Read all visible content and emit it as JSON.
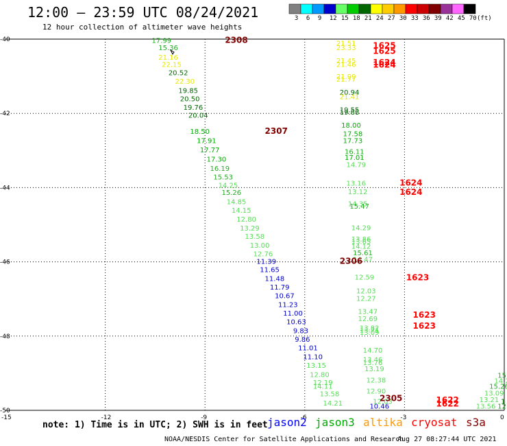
{
  "title": "12:00 — 23:59 UTC 08/24/2021",
  "subtitle": "12 hour collection of altimeter wave heights",
  "note": "note: 1) Time is in UTC; 2) SWH is in feet",
  "footer_left": "NOAA/NESDIS Center for Satellite Applications and Research",
  "footer_right": "Aug 27 08:27:44 UTC 2021",
  "colorbar": {
    "unit": "(ft)",
    "labels": [
      "3",
      "6",
      "9",
      "12",
      "15",
      "18",
      "21",
      "24",
      "27",
      "30",
      "33",
      "36",
      "39",
      "42",
      "45",
      "70"
    ],
    "colors": [
      "#808080",
      "#00ffff",
      "#0099ff",
      "#0000cc",
      "#66ff66",
      "#00cc00",
      "#006600",
      "#ffff00",
      "#ffcc00",
      "#ff9900",
      "#ff0000",
      "#cc0000",
      "#800000",
      "#993399",
      "#ff66ff",
      "#000000"
    ]
  },
  "satellites": [
    {
      "name": "jason2",
      "color": "#0000ff"
    },
    {
      "name": "jason3",
      "color": "#00aa00"
    },
    {
      "name": "altika",
      "color": "#ff9900"
    },
    {
      "name": "cryosat",
      "color": "#ff0000"
    },
    {
      "name": "s3a",
      "color": "#800000"
    }
  ],
  "chart_data": {
    "type": "scatter",
    "xlim": [
      -15,
      0
    ],
    "ylim": [
      -50,
      -40
    ],
    "x_ticks": [
      "-15",
      "-12",
      "-9",
      "-6",
      "-3",
      "0"
    ],
    "y_ticks": [
      "-40",
      "-42",
      "-44",
      "-46",
      "-48",
      "-50"
    ],
    "grid": true,
    "track_labels": [
      {
        "text": "2308",
        "lon": -8.4,
        "lat": -40.1,
        "color": "#800000"
      },
      {
        "text": "2307",
        "lon": -7.2,
        "lat": -42.55,
        "color": "#800000"
      },
      {
        "text": "2306",
        "lon": -4.95,
        "lat": -46.05,
        "color": "#800000"
      },
      {
        "text": "2305",
        "lon": -3.75,
        "lat": -49.75,
        "color": "#800000"
      },
      {
        "text": "1625",
        "lon": -3.95,
        "lat": -40.25,
        "color": "#ff0000"
      },
      {
        "text": "1625",
        "lon": -3.95,
        "lat": -40.4,
        "color": "#ff0000"
      },
      {
        "text": "1624",
        "lon": -3.95,
        "lat": -40.7,
        "color": "#ff0000"
      },
      {
        "text": "1624",
        "lon": -3.95,
        "lat": -40.77,
        "color": "#ff0000"
      },
      {
        "text": "1624",
        "lon": -3.15,
        "lat": -43.95,
        "color": "#ff0000"
      },
      {
        "text": "1624",
        "lon": -3.15,
        "lat": -44.2,
        "color": "#ff0000"
      },
      {
        "text": "1623",
        "lon": -2.95,
        "lat": -46.5,
        "color": "#ff0000"
      },
      {
        "text": "1623",
        "lon": -2.75,
        "lat": -47.5,
        "color": "#ff0000"
      },
      {
        "text": "1623",
        "lon": -2.75,
        "lat": -47.8,
        "color": "#ff0000"
      },
      {
        "text": "1622",
        "lon": -2.05,
        "lat": -49.8,
        "color": "#ff0000"
      },
      {
        "text": "1622",
        "lon": -2.05,
        "lat": -49.9,
        "color": "#ff0000"
      }
    ],
    "points": [
      {
        "v": "17.99",
        "lon": -10.6,
        "lat": -40.1,
        "color": "#22aa22"
      },
      {
        "v": "15.36",
        "lon": -10.4,
        "lat": -40.3,
        "color": "#22aa22"
      },
      {
        "v": "21.16",
        "lon": -10.4,
        "lat": -40.55,
        "color": "#e8e800"
      },
      {
        "v": "22.15",
        "lon": -10.3,
        "lat": -40.75,
        "color": "#e8e800"
      },
      {
        "v": "20.52",
        "lon": -10.1,
        "lat": -40.97,
        "color": "#006600"
      },
      {
        "v": "22.30",
        "lon": -9.9,
        "lat": -41.2,
        "color": "#e8e800"
      },
      {
        "v": "19.85",
        "lon": -9.8,
        "lat": -41.45,
        "color": "#006600"
      },
      {
        "v": "20.50",
        "lon": -9.75,
        "lat": -41.67,
        "color": "#006600"
      },
      {
        "v": "19.76",
        "lon": -9.65,
        "lat": -41.9,
        "color": "#006600"
      },
      {
        "v": "20.04",
        "lon": -9.5,
        "lat": -42.12,
        "color": "#006600"
      },
      {
        "v": "18.50",
        "lon": -9.45,
        "lat": -42.55,
        "color": "#00aa00"
      },
      {
        "v": "17.91",
        "lon": -9.25,
        "lat": -42.8,
        "color": "#00aa00"
      },
      {
        "v": "17.77",
        "lon": -9.15,
        "lat": -43.05,
        "color": "#00aa00"
      },
      {
        "v": "17.30",
        "lon": -8.95,
        "lat": -43.3,
        "color": "#00aa00"
      },
      {
        "v": "16.19",
        "lon": -8.85,
        "lat": -43.55,
        "color": "#22aa22"
      },
      {
        "v": "15.53",
        "lon": -8.75,
        "lat": -43.78,
        "color": "#22aa22"
      },
      {
        "v": "14.25",
        "lon": -8.6,
        "lat": -44.0,
        "color": "#55dd55"
      },
      {
        "v": "15.26",
        "lon": -8.5,
        "lat": -44.2,
        "color": "#22aa22"
      },
      {
        "v": "14.85",
        "lon": -8.35,
        "lat": -44.45,
        "color": "#55dd55"
      },
      {
        "v": "14.15",
        "lon": -8.2,
        "lat": -44.68,
        "color": "#55dd55"
      },
      {
        "v": "12.80",
        "lon": -8.05,
        "lat": -44.92,
        "color": "#55dd55"
      },
      {
        "v": "13.29",
        "lon": -7.95,
        "lat": -45.16,
        "color": "#55dd55"
      },
      {
        "v": "13.58",
        "lon": -7.8,
        "lat": -45.38,
        "color": "#55dd55"
      },
      {
        "v": "13.00",
        "lon": -7.65,
        "lat": -45.62,
        "color": "#55dd55"
      },
      {
        "v": "12.76",
        "lon": -7.55,
        "lat": -45.85,
        "color": "#55dd55"
      },
      {
        "v": "11.39",
        "lon": -7.45,
        "lat": -46.05,
        "color": "#0000cc"
      },
      {
        "v": "11.65",
        "lon": -7.35,
        "lat": -46.28,
        "color": "#0000cc"
      },
      {
        "v": "11.48",
        "lon": -7.2,
        "lat": -46.52,
        "color": "#0000cc"
      },
      {
        "v": "11.79",
        "lon": -7.05,
        "lat": -46.75,
        "color": "#0000cc"
      },
      {
        "v": "10.67",
        "lon": -6.9,
        "lat": -46.98,
        "color": "#0000cc"
      },
      {
        "v": "11.23",
        "lon": -6.8,
        "lat": -47.22,
        "color": "#0000cc"
      },
      {
        "v": "11.00",
        "lon": -6.65,
        "lat": -47.45,
        "color": "#0000cc"
      },
      {
        "v": "10.63",
        "lon": -6.55,
        "lat": -47.68,
        "color": "#0000cc"
      },
      {
        "v": "9.83",
        "lon": -6.35,
        "lat": -47.92,
        "color": "#0000cc"
      },
      {
        "v": "9.86",
        "lon": -6.3,
        "lat": -48.15,
        "color": "#0000cc"
      },
      {
        "v": "11.01",
        "lon": -6.2,
        "lat": -48.38,
        "color": "#0000cc"
      },
      {
        "v": "11.10",
        "lon": -6.05,
        "lat": -48.62,
        "color": "#0000cc"
      },
      {
        "v": "13.15",
        "lon": -5.95,
        "lat": -48.85,
        "color": "#55dd55"
      },
      {
        "v": "12.80",
        "lon": -5.85,
        "lat": -49.1,
        "color": "#55dd55"
      },
      {
        "v": "12.19",
        "lon": -5.75,
        "lat": -49.32,
        "color": "#55dd55"
      },
      {
        "v": "14.11",
        "lon": -5.75,
        "lat": -49.42,
        "color": "#55dd55"
      },
      {
        "v": "13.58",
        "lon": -5.55,
        "lat": -49.62,
        "color": "#55dd55"
      },
      {
        "v": "14.21",
        "lon": -5.45,
        "lat": -49.87,
        "color": "#55dd55"
      },
      {
        "v": "21.51",
        "lon": -5.05,
        "lat": -40.18,
        "color": "#e8e800"
      },
      {
        "v": "23.33",
        "lon": -5.05,
        "lat": -40.3,
        "color": "#e8e800"
      },
      {
        "v": "21.45",
        "lon": -5.05,
        "lat": -40.65,
        "color": "#e8e800"
      },
      {
        "v": "21.46",
        "lon": -5.05,
        "lat": -40.75,
        "color": "#e8e800"
      },
      {
        "v": "21.99",
        "lon": -5.05,
        "lat": -41.07,
        "color": "#e8e800"
      },
      {
        "v": "21.77",
        "lon": -5.05,
        "lat": -41.15,
        "color": "#e8e800"
      },
      {
        "v": "20.94",
        "lon": -4.95,
        "lat": -41.5,
        "color": "#006600"
      },
      {
        "v": "21.41",
        "lon": -4.95,
        "lat": -41.62,
        "color": "#e8e800"
      },
      {
        "v": "19.55",
        "lon": -4.95,
        "lat": -41.97,
        "color": "#006600"
      },
      {
        "v": "19.88",
        "lon": -4.95,
        "lat": -42.03,
        "color": "#006600"
      },
      {
        "v": "18.00",
        "lon": -4.9,
        "lat": -42.38,
        "color": "#00aa00"
      },
      {
        "v": "17.58",
        "lon": -4.85,
        "lat": -42.62,
        "color": "#00aa00"
      },
      {
        "v": "17.73",
        "lon": -4.85,
        "lat": -42.8,
        "color": "#00aa00"
      },
      {
        "v": "16.11",
        "lon": -4.8,
        "lat": -43.1,
        "color": "#22aa22"
      },
      {
        "v": "17.01",
        "lon": -4.8,
        "lat": -43.25,
        "color": "#00aa00"
      },
      {
        "v": "14.79",
        "lon": -4.75,
        "lat": -43.45,
        "color": "#55dd55"
      },
      {
        "v": "13.16",
        "lon": -4.75,
        "lat": -43.95,
        "color": "#55dd55"
      },
      {
        "v": "13.12",
        "lon": -4.7,
        "lat": -44.18,
        "color": "#55dd55"
      },
      {
        "v": "14.35",
        "lon": -4.7,
        "lat": -44.5,
        "color": "#55dd55"
      },
      {
        "v": "15.47",
        "lon": -4.65,
        "lat": -44.57,
        "color": "#22aa22"
      },
      {
        "v": "14.29",
        "lon": -4.6,
        "lat": -45.15,
        "color": "#55dd55"
      },
      {
        "v": "13.86",
        "lon": -4.6,
        "lat": -45.45,
        "color": "#55dd55"
      },
      {
        "v": "13.65",
        "lon": -4.6,
        "lat": -45.52,
        "color": "#55dd55"
      },
      {
        "v": "14.12",
        "lon": -4.6,
        "lat": -45.65,
        "color": "#55dd55"
      },
      {
        "v": "15.61",
        "lon": -4.55,
        "lat": -45.82,
        "color": "#22aa22"
      },
      {
        "v": "14.47",
        "lon": -4.55,
        "lat": -46.0,
        "color": "#55dd55"
      },
      {
        "v": "12.59",
        "lon": -4.5,
        "lat": -46.48,
        "color": "#55dd55"
      },
      {
        "v": "12.03",
        "lon": -4.45,
        "lat": -46.85,
        "color": "#55dd55"
      },
      {
        "v": "12.27",
        "lon": -4.45,
        "lat": -47.05,
        "color": "#55dd55"
      },
      {
        "v": "13.47",
        "lon": -4.4,
        "lat": -47.4,
        "color": "#55dd55"
      },
      {
        "v": "12.69",
        "lon": -4.4,
        "lat": -47.6,
        "color": "#55dd55"
      },
      {
        "v": "13.82",
        "lon": -4.35,
        "lat": -47.85,
        "color": "#55dd55"
      },
      {
        "v": "13.71",
        "lon": -4.35,
        "lat": -47.9,
        "color": "#55dd55"
      },
      {
        "v": "13.09",
        "lon": -4.35,
        "lat": -47.97,
        "color": "#55dd55"
      },
      {
        "v": "14.70",
        "lon": -4.25,
        "lat": -48.45,
        "color": "#55dd55"
      },
      {
        "v": "13.46",
        "lon": -4.25,
        "lat": -48.7,
        "color": "#55dd55"
      },
      {
        "v": "13.76",
        "lon": -4.25,
        "lat": -48.78,
        "color": "#55dd55"
      },
      {
        "v": "13.19",
        "lon": -4.2,
        "lat": -48.95,
        "color": "#55dd55"
      },
      {
        "v": "12.38",
        "lon": -4.15,
        "lat": -49.25,
        "color": "#55dd55"
      },
      {
        "v": "12.90",
        "lon": -4.15,
        "lat": -49.55,
        "color": "#55dd55"
      },
      {
        "v": "12.03",
        "lon": -3.95,
        "lat": -49.82,
        "color": "#55dd55"
      },
      {
        "v": "10.46",
        "lon": -4.05,
        "lat": -49.95,
        "color": "#0000cc"
      },
      {
        "v": "13.56",
        "lon": -0.85,
        "lat": -49.95,
        "color": "#55dd55"
      },
      {
        "v": "13.21",
        "lon": -0.75,
        "lat": -49.78,
        "color": "#55dd55"
      },
      {
        "v": "13.09",
        "lon": -0.6,
        "lat": -49.6,
        "color": "#55dd55"
      },
      {
        "v": "15.26",
        "lon": -0.45,
        "lat": -49.42,
        "color": "#22aa22"
      },
      {
        "v": "14.21",
        "lon": -0.3,
        "lat": -49.27,
        "color": "#55dd55"
      },
      {
        "v": "15.",
        "lon": -0.2,
        "lat": -49.12,
        "color": "#22aa22"
      },
      {
        "v": "12",
        "lon": -0.2,
        "lat": -49.95,
        "color": "#22aa22"
      },
      {
        "v": "1",
        "lon": -0.1,
        "lat": -49.82,
        "color": "#006600"
      }
    ]
  }
}
